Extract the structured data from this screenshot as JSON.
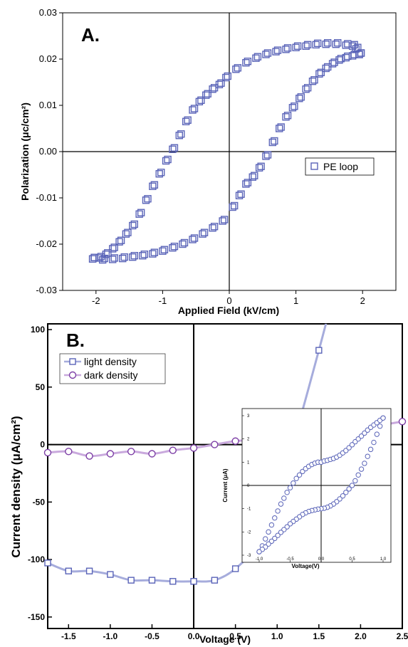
{
  "chart_data": [
    {
      "type": "scatter",
      "panel_label": "A.",
      "xlabel": "Applied Field (kV/cm)",
      "ylabel": "Polarization (μc/cm²)",
      "xlim": [
        -2.5,
        2.5
      ],
      "ylim": [
        -0.03,
        0.03
      ],
      "x_ticks": [
        "-2",
        "-1",
        "0",
        "1",
        "2"
      ],
      "y_ticks": [
        "0.03",
        "0.02",
        "0.01",
        "0.00",
        "-0.01",
        "-0.02",
        "-0.03"
      ],
      "legend": "PE loop",
      "legend_position": "right",
      "colors": {
        "series": "#5a64b8"
      },
      "upper_branch": [
        [
          1.95,
          0.021
        ],
        [
          1.9,
          0.0222
        ],
        [
          1.85,
          0.0228
        ],
        [
          1.75,
          0.023
        ],
        [
          1.6,
          0.0232
        ],
        [
          1.45,
          0.0232
        ],
        [
          1.3,
          0.0231
        ],
        [
          1.15,
          0.0228
        ],
        [
          1.0,
          0.0225
        ],
        [
          0.85,
          0.0221
        ],
        [
          0.7,
          0.0216
        ],
        [
          0.55,
          0.021
        ],
        [
          0.4,
          0.0202
        ],
        [
          0.25,
          0.0192
        ],
        [
          0.1,
          0.0178
        ],
        [
          -0.05,
          0.016
        ],
        [
          -0.15,
          0.0145
        ],
        [
          -0.25,
          0.0135
        ],
        [
          -0.35,
          0.0122
        ],
        [
          -0.45,
          0.0108
        ],
        [
          -0.55,
          0.009
        ],
        [
          -0.65,
          0.0065
        ],
        [
          -0.75,
          0.0035
        ],
        [
          -0.85,
          0.0005
        ],
        [
          -0.95,
          -0.002
        ],
        [
          -1.05,
          -0.0048
        ],
        [
          -1.15,
          -0.0075
        ],
        [
          -1.25,
          -0.0105
        ],
        [
          -1.35,
          -0.0135
        ],
        [
          -1.45,
          -0.016
        ],
        [
          -1.55,
          -0.0178
        ],
        [
          -1.65,
          -0.0195
        ],
        [
          -1.75,
          -0.021
        ],
        [
          -1.85,
          -0.0222
        ],
        [
          -1.95,
          -0.023
        ],
        [
          -2.05,
          -0.0232
        ]
      ],
      "lower_branch": [
        [
          -2.05,
          -0.0232
        ],
        [
          -1.9,
          -0.0234
        ],
        [
          -1.75,
          -0.0233
        ],
        [
          -1.6,
          -0.0231
        ],
        [
          -1.45,
          -0.0228
        ],
        [
          -1.3,
          -0.0225
        ],
        [
          -1.15,
          -0.0221
        ],
        [
          -1.0,
          -0.0215
        ],
        [
          -0.85,
          -0.0208
        ],
        [
          -0.7,
          -0.02
        ],
        [
          -0.55,
          -0.019
        ],
        [
          -0.4,
          -0.0178
        ],
        [
          -0.25,
          -0.0165
        ],
        [
          -0.1,
          -0.015
        ],
        [
          0.05,
          -0.012
        ],
        [
          0.15,
          -0.0095
        ],
        [
          0.25,
          -0.007
        ],
        [
          0.35,
          -0.0055
        ],
        [
          0.45,
          -0.0035
        ],
        [
          0.55,
          -0.001
        ],
        [
          0.65,
          0.002
        ],
        [
          0.75,
          0.005
        ],
        [
          0.85,
          0.0075
        ],
        [
          0.95,
          0.0095
        ],
        [
          1.05,
          0.0115
        ],
        [
          1.15,
          0.0135
        ],
        [
          1.25,
          0.0152
        ],
        [
          1.35,
          0.0168
        ],
        [
          1.45,
          0.018
        ],
        [
          1.55,
          0.019
        ],
        [
          1.65,
          0.0198
        ],
        [
          1.75,
          0.0203
        ],
        [
          1.85,
          0.0207
        ],
        [
          1.95,
          0.021
        ]
      ]
    },
    {
      "type": "line",
      "panel_label": "B.",
      "xlabel": "Voltage (V)",
      "ylabel": "Current density (μA/cm²)",
      "xlim": [
        -1.75,
        2.5
      ],
      "ylim": [
        -160,
        105
      ],
      "x_ticks": [
        "-1.5",
        "-1.0",
        "-0.5",
        "0.0",
        "0.5",
        "1.0",
        "1.5",
        "2.0",
        "2.5"
      ],
      "y_ticks": [
        "100",
        "50",
        "0",
        "-50",
        "-100",
        "-150"
      ],
      "legend_position": "top-left",
      "series": [
        {
          "name": "light density",
          "marker": "square",
          "color": "#5a64b8",
          "line_color": "#a6acdc",
          "x": [
            -1.75,
            -1.5,
            -1.25,
            -1.0,
            -0.75,
            -0.5,
            -0.25,
            0.0,
            0.25,
            0.5,
            0.75,
            1.0,
            1.25,
            1.5
          ],
          "y": [
            -103,
            -110,
            -110,
            -113,
            -118,
            -118,
            -119,
            -119,
            -118,
            -108,
            -87,
            -43,
            16,
            82
          ]
        },
        {
          "name": "dark density",
          "marker": "circle",
          "color": "#7d3fa6",
          "line_color": "#c9a9dd",
          "x": [
            -1.75,
            -1.5,
            -1.25,
            -1.0,
            -0.75,
            -0.5,
            -0.25,
            0.0,
            0.25,
            0.5,
            0.75,
            1.0,
            1.25,
            1.5,
            1.75,
            2.0,
            2.25,
            2.5
          ],
          "y": [
            -7,
            -6,
            -10,
            -8,
            -6,
            -8,
            -5,
            -3,
            0,
            3,
            4,
            5,
            7,
            9,
            11,
            14,
            17,
            20
          ]
        }
      ],
      "inset": {
        "type": "scatter",
        "xlabel": "Voltage(V)",
        "ylabel": "Current (μA)",
        "xlim": [
          -1.0,
          1.0
        ],
        "ylim": [
          -3,
          3
        ],
        "x_ticks": [
          "-1.0",
          "-0.5",
          "0.0",
          "0.5",
          "1.0"
        ],
        "y_ticks": [
          "3",
          "2",
          "1",
          "0",
          "-1",
          "-2",
          "-3"
        ],
        "upper_branch": [
          [
            -1.0,
            -2.85
          ],
          [
            -0.95,
            -2.6
          ],
          [
            -0.9,
            -2.3
          ],
          [
            -0.85,
            -2.0
          ],
          [
            -0.8,
            -1.7
          ],
          [
            -0.75,
            -1.4
          ],
          [
            -0.7,
            -1.1
          ],
          [
            -0.65,
            -0.8
          ],
          [
            -0.6,
            -0.55
          ],
          [
            -0.55,
            -0.3
          ],
          [
            -0.5,
            -0.1
          ],
          [
            -0.45,
            0.1
          ],
          [
            -0.4,
            0.3
          ],
          [
            -0.35,
            0.45
          ],
          [
            -0.3,
            0.6
          ],
          [
            -0.25,
            0.72
          ],
          [
            -0.2,
            0.82
          ],
          [
            -0.15,
            0.9
          ],
          [
            -0.1,
            0.96
          ],
          [
            -0.05,
            1.0
          ],
          [
            0.0,
            1.0
          ],
          [
            0.05,
            1.05
          ],
          [
            0.1,
            1.08
          ],
          [
            0.15,
            1.12
          ],
          [
            0.2,
            1.16
          ],
          [
            0.25,
            1.22
          ],
          [
            0.3,
            1.3
          ],
          [
            0.35,
            1.4
          ],
          [
            0.4,
            1.5
          ],
          [
            0.45,
            1.62
          ],
          [
            0.5,
            1.75
          ],
          [
            0.55,
            1.88
          ],
          [
            0.6,
            2.0
          ],
          [
            0.65,
            2.12
          ],
          [
            0.7,
            2.25
          ],
          [
            0.75,
            2.38
          ],
          [
            0.8,
            2.5
          ],
          [
            0.85,
            2.6
          ],
          [
            0.9,
            2.7
          ],
          [
            0.95,
            2.8
          ],
          [
            1.0,
            2.9
          ]
        ],
        "lower_branch": [
          [
            1.0,
            2.9
          ],
          [
            0.95,
            2.55
          ],
          [
            0.9,
            2.2
          ],
          [
            0.85,
            1.85
          ],
          [
            0.8,
            1.55
          ],
          [
            0.75,
            1.25
          ],
          [
            0.7,
            0.95
          ],
          [
            0.65,
            0.7
          ],
          [
            0.6,
            0.45
          ],
          [
            0.55,
            0.2
          ],
          [
            0.5,
            0.0
          ],
          [
            0.45,
            -0.15
          ],
          [
            0.4,
            -0.3
          ],
          [
            0.35,
            -0.45
          ],
          [
            0.3,
            -0.58
          ],
          [
            0.25,
            -0.7
          ],
          [
            0.2,
            -0.8
          ],
          [
            0.15,
            -0.88
          ],
          [
            0.1,
            -0.94
          ],
          [
            0.05,
            -0.98
          ],
          [
            0.0,
            -1.0
          ],
          [
            -0.05,
            -1.02
          ],
          [
            -0.1,
            -1.05
          ],
          [
            -0.15,
            -1.08
          ],
          [
            -0.2,
            -1.12
          ],
          [
            -0.25,
            -1.18
          ],
          [
            -0.3,
            -1.25
          ],
          [
            -0.35,
            -1.35
          ],
          [
            -0.4,
            -1.45
          ],
          [
            -0.45,
            -1.55
          ],
          [
            -0.5,
            -1.65
          ],
          [
            -0.55,
            -1.78
          ],
          [
            -0.6,
            -1.9
          ],
          [
            -0.65,
            -2.02
          ],
          [
            -0.7,
            -2.15
          ],
          [
            -0.75,
            -2.28
          ],
          [
            -0.8,
            -2.4
          ],
          [
            -0.85,
            -2.52
          ],
          [
            -0.9,
            -2.65
          ],
          [
            -0.95,
            -2.75
          ],
          [
            -1.0,
            -2.85
          ]
        ]
      }
    }
  ]
}
